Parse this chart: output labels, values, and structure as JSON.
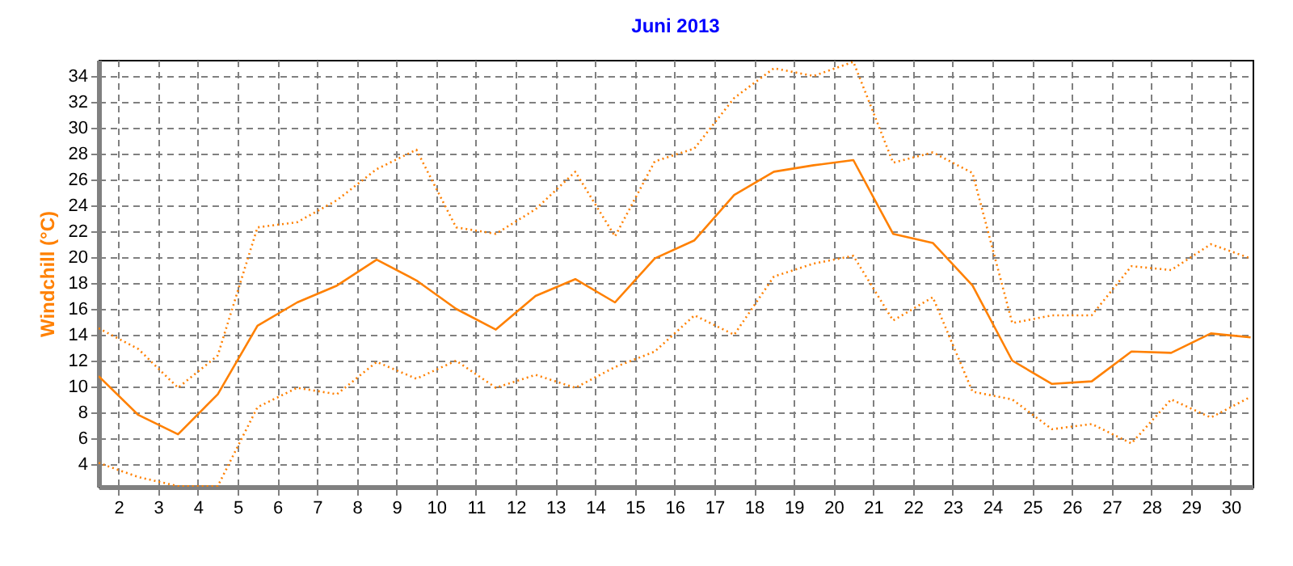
{
  "chart_data": {
    "type": "line",
    "title": "Juni 2013",
    "ylabel": "Windchill  (°C)",
    "x": [
      1.5,
      2.5,
      3.5,
      4.5,
      5.5,
      6.5,
      7.5,
      8.5,
      9.5,
      10.5,
      11.5,
      12.5,
      13.5,
      14.5,
      15.5,
      16.5,
      17.5,
      18.5,
      19.5,
      20.5,
      21.5,
      22.5,
      23.5,
      24.5,
      25.5,
      26.5,
      27.5,
      28.5,
      29.5,
      30.5
    ],
    "series": [
      {
        "color": "#ff8000",
        "line_style": "dotted",
        "values": [
          14.5,
          12.9,
          9.9,
          12.4,
          22.3,
          22.7,
          24.4,
          26.8,
          28.3,
          22.3,
          21.8,
          23.7,
          26.6,
          21.6,
          27.4,
          28.4,
          32.3,
          34.6,
          34.0,
          35.1,
          27.3,
          28.1,
          26.5,
          14.9,
          15.5,
          15.5,
          19.3,
          19.0,
          21.0,
          19.9
        ]
      },
      {
        "color": "#ff8000",
        "line_style": "solid",
        "values": [
          10.8,
          7.8,
          6.3,
          9.4,
          14.7,
          16.5,
          17.8,
          19.8,
          18.2,
          16.0,
          14.4,
          17.0,
          18.3,
          16.5,
          19.9,
          21.3,
          24.8,
          26.6,
          27.1,
          27.5,
          21.8,
          21.1,
          17.8,
          12.0,
          10.2,
          10.4,
          12.7,
          12.6,
          14.1,
          13.8
        ]
      },
      {
        "color": "#ff8000",
        "line_style": "dotted",
        "values": [
          4.1,
          3.0,
          2.3,
          2.3,
          8.4,
          9.9,
          9.4,
          11.9,
          10.6,
          12.0,
          9.9,
          10.9,
          9.9,
          11.5,
          12.7,
          15.5,
          14.0,
          18.5,
          19.5,
          20.1,
          15.1,
          16.9,
          9.6,
          9.0,
          6.7,
          7.1,
          5.6,
          9.0,
          7.6,
          9.2
        ]
      }
    ],
    "xlim": [
      1.5,
      30.55
    ],
    "xticks": [
      2,
      3,
      4,
      5,
      6,
      7,
      8,
      9,
      10,
      11,
      12,
      13,
      14,
      15,
      16,
      17,
      18,
      19,
      20,
      21,
      22,
      23,
      24,
      25,
      26,
      27,
      28,
      29,
      30
    ],
    "ylim": [
      2.25,
      35.25
    ],
    "yticks": [
      4,
      6,
      8,
      10,
      12,
      14,
      16,
      18,
      20,
      22,
      24,
      26,
      28,
      30,
      32,
      34
    ],
    "grid": true
  }
}
